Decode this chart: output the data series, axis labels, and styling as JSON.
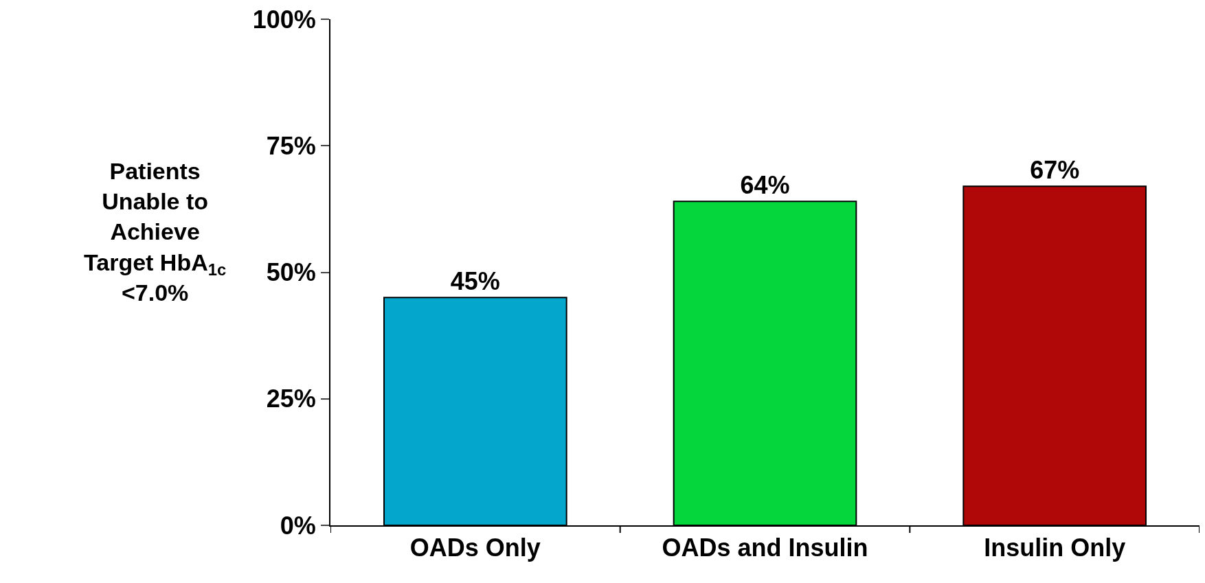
{
  "chart_data": {
    "type": "bar",
    "ylabel": "Patients\nUnable to\nAchieve\nTarget HbA$_{1c}$\n<7.0%",
    "categories": [
      "OADs Only",
      "OADs and Insulin",
      "Insulin Only"
    ],
    "values": [
      45,
      64,
      67
    ],
    "colors": [
      "#05a6cc",
      "#05d63c",
      "#b00808"
    ],
    "value_labels": [
      "45%",
      "64%",
      "67%"
    ],
    "ylim": [
      0,
      100
    ],
    "yticks": [
      {
        "value": 0,
        "label": "0%"
      },
      {
        "value": 25,
        "label": "25%"
      },
      {
        "value": 50,
        "label": "50%"
      },
      {
        "value": 75,
        "label": "75%"
      },
      {
        "value": 100,
        "label": "100%"
      }
    ],
    "legend": false
  }
}
